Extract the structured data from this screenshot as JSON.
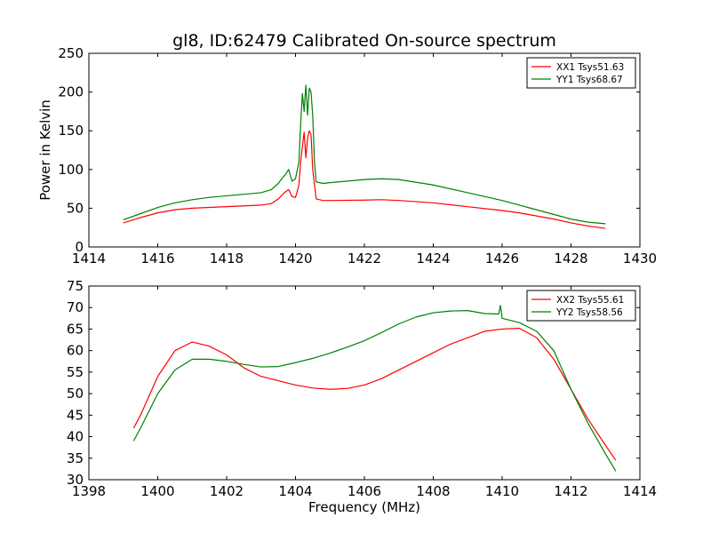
{
  "chart_data": [
    {
      "type": "line",
      "title": "gl8, ID:62479 Calibrated On-source spectrum",
      "xlabel": "",
      "ylabel": "Power in Kelvin",
      "xlim": [
        1414,
        1430
      ],
      "ylim": [
        0,
        250
      ],
      "xticks": [
        1414,
        1416,
        1418,
        1420,
        1422,
        1424,
        1426,
        1428,
        1430
      ],
      "yticks": [
        0,
        50,
        100,
        150,
        200,
        250
      ],
      "grid": false,
      "legend_position": "top-right",
      "series": [
        {
          "name": "XX1 Tsys51.63",
          "color": "#ff0000",
          "x": [
            1415.0,
            1415.5,
            1416.0,
            1416.5,
            1417.0,
            1417.5,
            1418.0,
            1418.5,
            1419.0,
            1419.3,
            1419.5,
            1419.7,
            1419.8,
            1419.9,
            1420.0,
            1420.1,
            1420.15,
            1420.2,
            1420.25,
            1420.3,
            1420.35,
            1420.4,
            1420.45,
            1420.5,
            1420.6,
            1420.8,
            1421.0,
            1422.0,
            1422.5,
            1423.0,
            1424.0,
            1425.0,
            1426.0,
            1426.5,
            1427.0,
            1427.5,
            1428.0,
            1428.5,
            1429.0
          ],
          "y": [
            31,
            38,
            44,
            48,
            50,
            51,
            52,
            53,
            54,
            56,
            62,
            71,
            74,
            65,
            64,
            80,
            110,
            130,
            148,
            115,
            140,
            150,
            145,
            100,
            62,
            60,
            60,
            60.5,
            61,
            60,
            57,
            52,
            47,
            44,
            40,
            36,
            31,
            27,
            24
          ]
        },
        {
          "name": "YY1 Tsys68.67",
          "color": "#008000",
          "x": [
            1415.0,
            1415.5,
            1416.0,
            1416.5,
            1417.0,
            1417.5,
            1418.0,
            1418.5,
            1419.0,
            1419.3,
            1419.5,
            1419.6,
            1419.7,
            1419.8,
            1419.9,
            1420.0,
            1420.1,
            1420.15,
            1420.2,
            1420.25,
            1420.3,
            1420.35,
            1420.4,
            1420.45,
            1420.5,
            1420.55,
            1420.6,
            1420.8,
            1421.0,
            1422.0,
            1422.5,
            1423.0,
            1424.0,
            1425.0,
            1426.0,
            1426.5,
            1427.0,
            1427.5,
            1428.0,
            1428.5,
            1429.0
          ],
          "y": [
            35,
            43,
            51,
            57,
            61,
            64,
            66,
            68,
            70,
            74,
            82,
            88,
            93,
            100,
            85,
            88,
            110,
            160,
            198,
            175,
            209,
            170,
            205,
            200,
            170,
            110,
            84,
            82,
            83,
            87,
            88,
            87,
            80,
            70,
            60,
            54,
            48,
            42,
            36,
            32,
            30
          ]
        }
      ]
    },
    {
      "type": "line",
      "title": "",
      "xlabel": "Frequency (MHz)",
      "ylabel": "",
      "xlim": [
        1398,
        1414
      ],
      "ylim": [
        30,
        75
      ],
      "xticks": [
        1398,
        1400,
        1402,
        1404,
        1406,
        1408,
        1410,
        1412,
        1414
      ],
      "yticks": [
        30,
        35,
        40,
        45,
        50,
        55,
        60,
        65,
        70,
        75
      ],
      "grid": false,
      "legend_position": "top-right",
      "series": [
        {
          "name": "XX2 Tsys55.61",
          "color": "#ff0000",
          "x": [
            1399.3,
            1399.5,
            1400.0,
            1400.5,
            1401.0,
            1401.5,
            1402.0,
            1402.5,
            1403.0,
            1403.5,
            1404.0,
            1404.5,
            1405.0,
            1405.5,
            1406.0,
            1406.5,
            1407.0,
            1407.5,
            1408.0,
            1408.5,
            1409.0,
            1409.5,
            1410.0,
            1410.5,
            1411.0,
            1411.5,
            1412.0,
            1412.5,
            1413.0,
            1413.3
          ],
          "y": [
            42,
            45,
            54,
            60,
            62,
            61,
            59,
            56,
            54,
            53,
            52,
            51.3,
            51,
            51.2,
            52,
            53.5,
            55.5,
            57.5,
            59.5,
            61.5,
            63,
            64.5,
            65,
            65.2,
            63,
            58,
            51,
            44,
            38,
            34.5
          ]
        },
        {
          "name": "YY2 Tsys58.56",
          "color": "#008000",
          "x": [
            1399.3,
            1399.5,
            1400.0,
            1400.5,
            1401.0,
            1401.5,
            1402.0,
            1402.5,
            1403.0,
            1403.5,
            1404.0,
            1404.5,
            1405.0,
            1405.5,
            1406.0,
            1406.5,
            1407.0,
            1407.5,
            1408.0,
            1408.5,
            1409.0,
            1409.5,
            1409.9,
            1409.95,
            1410.0,
            1410.5,
            1411.0,
            1411.5,
            1412.0,
            1412.5,
            1413.0,
            1413.3
          ],
          "y": [
            39,
            42,
            50,
            55.5,
            58,
            58,
            57.5,
            56.8,
            56.2,
            56.3,
            57.2,
            58.2,
            59.4,
            60.8,
            62.3,
            64.2,
            66.2,
            67.8,
            68.8,
            69.2,
            69.3,
            68.6,
            68.5,
            70.5,
            67.5,
            66.5,
            64.5,
            60,
            51,
            43,
            36,
            32
          ]
        }
      ]
    }
  ]
}
